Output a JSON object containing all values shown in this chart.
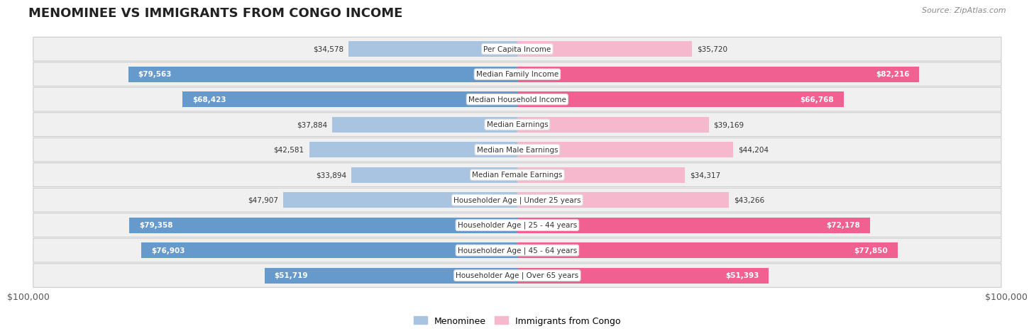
{
  "title": "MENOMINEE VS IMMIGRANTS FROM CONGO INCOME",
  "source": "Source: ZipAtlas.com",
  "categories": [
    "Per Capita Income",
    "Median Family Income",
    "Median Household Income",
    "Median Earnings",
    "Median Male Earnings",
    "Median Female Earnings",
    "Householder Age | Under 25 years",
    "Householder Age | 25 - 44 years",
    "Householder Age | 45 - 64 years",
    "Householder Age | Over 65 years"
  ],
  "menominee_values": [
    34578,
    79563,
    68423,
    37884,
    42581,
    33894,
    47907,
    79358,
    76903,
    51719
  ],
  "congo_values": [
    35720,
    82216,
    66768,
    39169,
    44204,
    34317,
    43266,
    72178,
    77850,
    51393
  ],
  "menominee_labels": [
    "$34,578",
    "$79,563",
    "$68,423",
    "$37,884",
    "$42,581",
    "$33,894",
    "$47,907",
    "$79,358",
    "$76,903",
    "$51,719"
  ],
  "congo_labels": [
    "$35,720",
    "$82,216",
    "$66,768",
    "$39,169",
    "$44,204",
    "$34,317",
    "$43,266",
    "$72,178",
    "$77,850",
    "$51,393"
  ],
  "max_value": 100000,
  "menominee_color_light": "#a8c4e0",
  "menominee_color_dark": "#6699cc",
  "congo_color_light": "#f5b8cc",
  "congo_color_dark": "#f06090",
  "row_bg_light": "#f0f0f0",
  "row_bg_dark": "#e8e8e8",
  "label_threshold": 50000,
  "axis_label": "$100,000",
  "legend_menominee": "Menominee",
  "legend_congo": "Immigrants from Congo",
  "label_font_inside_color": "white",
  "label_font_outside_color": "#333333"
}
